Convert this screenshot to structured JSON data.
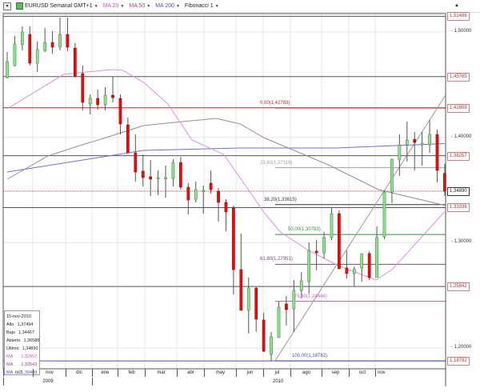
{
  "toolbar": {
    "menu_icon": "menu-icon",
    "symbol": "EURUSD Semanal GMT+1",
    "ma20": "MA 20",
    "ma50": "MA 50",
    "ma200": "MA 200",
    "fibonacci": "Fibonacci 1"
  },
  "colors": {
    "up": "#90e090",
    "down": "#e01010",
    "ma20": "#e090e0",
    "ma50": "#a08898",
    "ma200": "#7070d0",
    "current_line": "#d04040"
  },
  "price_axis": {
    "ticks": [
      {
        "value": 1.5,
        "label": "1,50000"
      },
      {
        "value": 1.4,
        "label": "1,40000"
      },
      {
        "value": 1.3,
        "label": "1,30000"
      },
      {
        "value": 1.2,
        "label": "1,20000"
      }
    ],
    "levels": [
      {
        "value": 1.51486,
        "label": "1,51486"
      },
      {
        "value": 1.45765,
        "label": "1,45765"
      },
      {
        "value": 1.42809,
        "label": "1,42809"
      },
      {
        "value": 1.38257,
        "label": "1,38257"
      },
      {
        "value": 1.33336,
        "label": "1,33336"
      },
      {
        "value": 1.25842,
        "label": "1,25842"
      },
      {
        "value": 1.18782,
        "label": "1,18782"
      }
    ],
    "current": {
      "value": 1.3489,
      "label": "1,34890"
    }
  },
  "fibonacci": [
    {
      "label": "0,00(1,42783)",
      "value": 1.42783,
      "color": "#a03030"
    },
    {
      "label": "23,60(1,37119)",
      "value": 1.37119,
      "color": "#a0a0a0"
    },
    {
      "label": "38,20(1,33615)",
      "value": 1.33615,
      "color": "#333333"
    },
    {
      "label": "50,00(1,30783)",
      "value": 1.30783,
      "color": "#3a8a3a"
    },
    {
      "label": "61,80(1,27951)",
      "value": 1.27951,
      "color": "#705070"
    },
    {
      "label": "76,40(1,24446)",
      "value": 1.24446,
      "color": "#d060d0"
    },
    {
      "label": "100,00(1,18782)",
      "value": 1.18782,
      "color": "#5050a0"
    }
  ],
  "infobox": {
    "date": "15-nov-2010",
    "rows": [
      {
        "label": "Alto",
        "value": "1,37494"
      },
      {
        "label": "Bajo",
        "value": "1,34467"
      },
      {
        "label": "Abierto",
        "value": "1,36588"
      },
      {
        "label": "Último",
        "value": "1,34890"
      }
    ],
    "ma": [
      {
        "label": "MA",
        "value": "1,32957",
        "color": "#d050d0"
      },
      {
        "label": "MA",
        "value": "1,33543",
        "color": "#a04090"
      },
      {
        "label": "MA",
        "value": "1,39408",
        "color": "#5050c0"
      }
    ]
  },
  "time_axis": {
    "months": [
      "oct",
      "nov",
      "dic",
      "ene",
      "feb",
      "mar",
      "abr",
      "may",
      "jun",
      "jul",
      "ago",
      "sep",
      "oct",
      "nov"
    ],
    "years": [
      "2009",
      "2010"
    ]
  },
  "chart_data": {
    "type": "candlestick",
    "symbol": "EURUSD",
    "interval": "Semanal",
    "ylim": [
      1.175,
      1.525
    ],
    "grid": true,
    "candles": [
      [
        1.4567,
        1.481,
        1.456,
        1.4719
      ],
      [
        1.4681,
        1.4962,
        1.4674,
        1.4886
      ],
      [
        1.4879,
        1.5053,
        1.4825,
        1.5
      ],
      [
        1.4977,
        1.5053,
        1.4681,
        1.4704
      ],
      [
        1.4704,
        1.4909,
        1.462,
        1.4833
      ],
      [
        1.4825,
        1.5038,
        1.481,
        1.4901
      ],
      [
        1.4901,
        1.5008,
        1.4795,
        1.4856
      ],
      [
        1.4856,
        1.5137,
        1.4825,
        1.4977
      ],
      [
        1.4977,
        1.5137,
        1.4818,
        1.4856
      ],
      [
        1.4848,
        1.4894,
        1.4567,
        1.4582
      ],
      [
        1.4605,
        1.4681,
        1.4256,
        1.4332
      ],
      [
        1.4317,
        1.4408,
        1.4218,
        1.437
      ],
      [
        1.437,
        1.4453,
        1.4263,
        1.4309
      ],
      [
        1.4309,
        1.4476,
        1.4256,
        1.44
      ],
      [
        1.44,
        1.4575,
        1.4332,
        1.4377
      ],
      [
        1.437,
        1.4408,
        1.4028,
        1.4127
      ],
      [
        1.4119,
        1.4188,
        1.3853,
        1.3853
      ],
      [
        1.3853,
        1.4028,
        1.358,
        1.3671
      ],
      [
        1.3679,
        1.3838,
        1.3534,
        1.3618
      ],
      [
        1.3626,
        1.3785,
        1.3443,
        1.3603
      ],
      [
        1.361,
        1.3686,
        1.3451,
        1.3618
      ],
      [
        1.3618,
        1.3732,
        1.3428,
        1.3618
      ],
      [
        1.361,
        1.3793,
        1.3534,
        1.3762
      ],
      [
        1.3762,
        1.3815,
        1.3504,
        1.3527
      ],
      [
        1.3527,
        1.3565,
        1.3269,
        1.3405
      ],
      [
        1.3413,
        1.358,
        1.3383,
        1.3504
      ],
      [
        1.3497,
        1.3542,
        1.3276,
        1.3497
      ],
      [
        1.3565,
        1.3686,
        1.3466,
        1.3504
      ],
      [
        1.3489,
        1.3519,
        1.3201,
        1.3383
      ],
      [
        1.3383,
        1.3413,
        1.3109,
        1.3292
      ],
      [
        1.333,
        1.3352,
        1.251,
        1.2745
      ],
      [
        1.2745,
        1.3087,
        1.2358,
        1.2358
      ],
      [
        1.2358,
        1.2669,
        1.2138,
        1.257
      ],
      [
        1.257,
        1.2578,
        1.2153,
        1.2274
      ],
      [
        1.2267,
        1.2335,
        1.1963,
        1.197
      ],
      [
        1.194,
        1.2153,
        1.1878,
        1.2107
      ],
      [
        1.21,
        1.2442,
        1.21,
        1.2389
      ],
      [
        1.2419,
        1.2495,
        1.2214,
        1.2365
      ],
      [
        1.2373,
        1.2646,
        1.2153,
        1.2547
      ],
      [
        1.2547,
        1.2722,
        1.2472,
        1.2639
      ],
      [
        1.2631,
        1.3003,
        1.2517,
        1.2927
      ],
      [
        1.292,
        1.3026,
        1.2737,
        1.2904
      ],
      [
        1.2904,
        1.3102,
        1.2851,
        1.3049
      ],
      [
        1.3049,
        1.333,
        1.3026,
        1.3276
      ],
      [
        1.3276,
        1.3307,
        1.2752,
        1.2752
      ],
      [
        1.276,
        1.2927,
        1.2661,
        1.2707
      ],
      [
        1.2707,
        1.2775,
        1.2585,
        1.2752
      ],
      [
        1.276,
        1.2897,
        1.2631,
        1.2897
      ],
      [
        1.2897,
        1.292,
        1.2646,
        1.2669
      ],
      [
        1.2669,
        1.3155,
        1.2669,
        1.3049
      ],
      [
        1.3056,
        1.3497,
        1.3033,
        1.3481
      ],
      [
        1.3481,
        1.3793,
        1.3375,
        1.3793
      ],
      [
        1.3785,
        1.4028,
        1.3633,
        1.3929
      ],
      [
        1.3929,
        1.415,
        1.377,
        1.3975
      ],
      [
        1.3982,
        1.4051,
        1.3686,
        1.3952
      ],
      [
        1.3929,
        1.4051,
        1.3732,
        1.3945
      ],
      [
        1.3929,
        1.4165,
        1.3853,
        1.4028
      ],
      [
        1.4028,
        1.4074,
        1.3573,
        1.3686
      ],
      [
        1.36588,
        1.37494,
        1.34467,
        1.3489
      ]
    ],
    "ma20": [
      [
        0,
        1.4271
      ],
      [
        7.5,
        1.4598
      ],
      [
        13.9,
        1.4643
      ],
      [
        15.3,
        1.4636
      ],
      [
        18.1,
        1.4522
      ],
      [
        21.3,
        1.4317
      ],
      [
        24.5,
        1.3975
      ],
      [
        28.7,
        1.3838
      ],
      [
        32.2,
        1.3481
      ],
      [
        34,
        1.329
      ],
      [
        36.2,
        1.3102
      ],
      [
        39.9,
        1.2927
      ],
      [
        43.9,
        1.2783
      ],
      [
        48.9,
        1.2646
      ],
      [
        51,
        1.2745
      ],
      [
        53.9,
        1.2973
      ],
      [
        58,
        1.32957
      ]
    ],
    "ma50": [
      [
        0,
        1.3603
      ],
      [
        5.4,
        1.3823
      ],
      [
        9.6,
        1.3922
      ],
      [
        13.1,
        1.3998
      ],
      [
        18.1,
        1.4112
      ],
      [
        23.4,
        1.415
      ],
      [
        27.7,
        1.418
      ],
      [
        30.9,
        1.4127
      ],
      [
        34,
        1.3998
      ],
      [
        42.8,
        1.3732
      ],
      [
        49.2,
        1.3504
      ],
      [
        58,
        1.33543
      ]
    ],
    "ma200": [
      [
        0,
        1.3671
      ],
      [
        18.1,
        1.3876
      ],
      [
        30.9,
        1.3899
      ],
      [
        43.6,
        1.3899
      ],
      [
        58,
        1.39408
      ]
    ]
  }
}
